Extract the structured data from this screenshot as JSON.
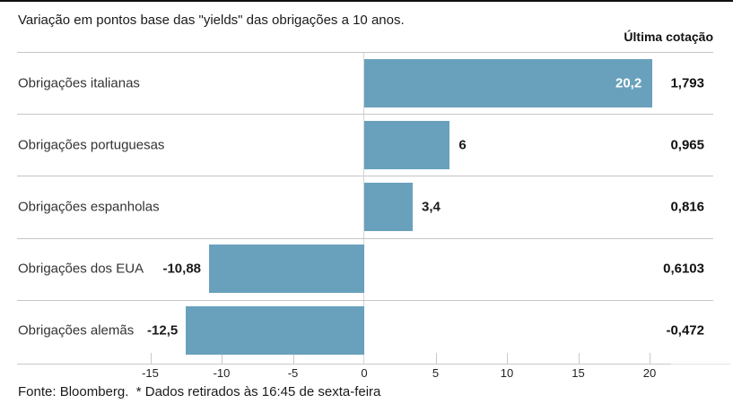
{
  "page": {
    "title": "Variação em pontos base das \"yields\" das obrigações a 10 anos.",
    "column_header": "Última cotação",
    "source_note": "Fonte: Bloomberg.  * Dados retirados às 16:45 de sexta-feira"
  },
  "chart_data": {
    "type": "bar",
    "orientation": "horizontal",
    "title": "Variação em pontos base das \"yields\" das obrigações a 10 anos.",
    "categories": [
      "Obrigações italianas",
      "Obrigações portuguesas",
      "Obrigações espanholas",
      "Obrigações dos EUA",
      "Obrigações alemãs"
    ],
    "series": [
      {
        "name": "Variação em pontos base",
        "values": [
          20.2,
          6,
          3.4,
          -10.88,
          -12.5
        ],
        "value_labels": [
          "20,2",
          "6",
          "3,4",
          "-10,88",
          "-12,5"
        ]
      },
      {
        "name": "Última cotação",
        "value_labels": [
          "1,793",
          "0,965",
          "0,816",
          "0,6103",
          "-0,472"
        ]
      }
    ],
    "value_label_inside": [
      true,
      false,
      false,
      false,
      false
    ],
    "x_ticks": [
      -15,
      -10,
      -5,
      0,
      5,
      10,
      15,
      20
    ],
    "x_tick_labels": [
      "-15",
      "-10",
      "-5",
      "0",
      "5",
      "10",
      "15",
      "20"
    ],
    "xlim": [
      -17.5,
      24.5
    ],
    "grid": "zero-line-only",
    "legend": "none",
    "bar_color": "#69a1bd"
  },
  "style": {
    "bar_color": "#69a1bd",
    "separator_color": "#c5c5c5",
    "axis_color": "#c9c9c9",
    "text_color": "#1a1a1a",
    "inside_label_color": "#ffffff"
  }
}
